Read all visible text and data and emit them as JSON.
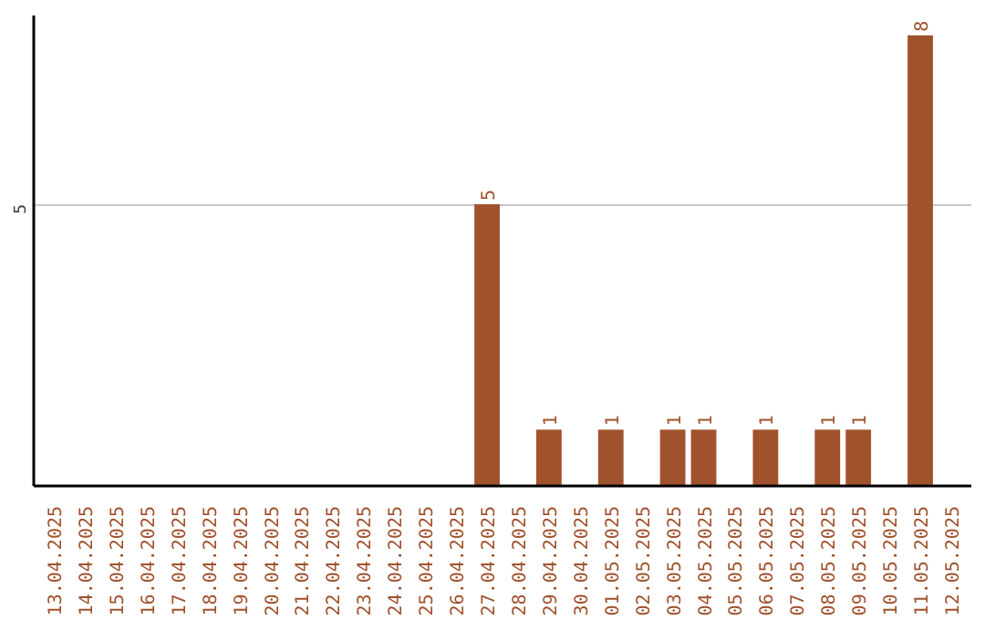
{
  "chart_data": {
    "type": "bar",
    "categories": [
      "13.04.2025",
      "14.04.2025",
      "15.04.2025",
      "16.04.2025",
      "17.04.2025",
      "18.04.2025",
      "19.04.2025",
      "20.04.2025",
      "21.04.2025",
      "22.04.2025",
      "23.04.2025",
      "24.04.2025",
      "25.04.2025",
      "26.04.2025",
      "27.04.2025",
      "28.04.2025",
      "29.04.2025",
      "30.04.2025",
      "01.05.2025",
      "02.05.2025",
      "03.05.2025",
      "04.05.2025",
      "05.05.2025",
      "06.05.2025",
      "07.05.2025",
      "08.05.2025",
      "09.05.2025",
      "10.05.2025",
      "11.05.2025",
      "12.05.2025"
    ],
    "values": [
      null,
      null,
      null,
      null,
      null,
      null,
      null,
      null,
      null,
      null,
      null,
      null,
      null,
      null,
      5,
      null,
      1,
      null,
      1,
      null,
      1,
      1,
      null,
      1,
      null,
      1,
      1,
      null,
      8,
      null
    ],
    "data_labels": true,
    "color": "#a0522d",
    "ylim": [
      0,
      8.35
    ],
    "yticks": [
      5
    ],
    "grid": "y"
  }
}
